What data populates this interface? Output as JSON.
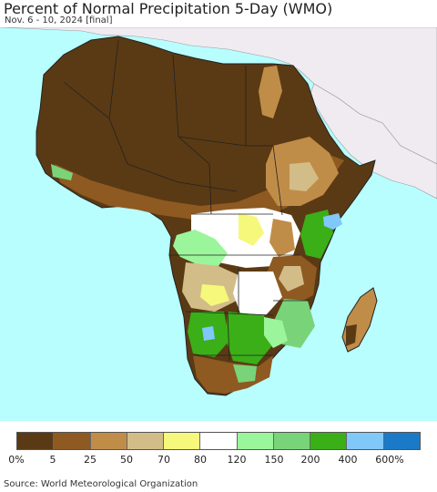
{
  "header": {
    "title": "Percent of Normal Precipitation 5-Day (WMO)",
    "subtitle": "Nov. 6 - 10, 2024 [final]"
  },
  "colors": {
    "ocean": "#b8fefe",
    "land_outside": "#efebf1",
    "border": "#222222"
  },
  "legend": {
    "colors": [
      "#5a3a14",
      "#8e5a22",
      "#c08d48",
      "#d2bd88",
      "#f5f87a",
      "#ffffff",
      "#9bf59b",
      "#79d479",
      "#3aaf18",
      "#80c8fa",
      "#1a7ac8"
    ],
    "labels": [
      "0%",
      "5",
      "25",
      "50",
      "70",
      "80",
      "120",
      "150",
      "200",
      "400",
      "600%"
    ]
  },
  "source": "Source: World Meteorological Organization"
}
